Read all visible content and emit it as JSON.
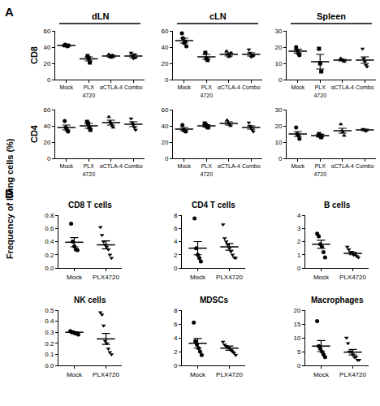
{
  "figure": {
    "panel_labels": [
      "A",
      "B"
    ],
    "y_label": "Frequency of living cells (%)"
  },
  "chart_data": [
    {
      "type": "scatter",
      "title": "dLN",
      "y_label": "CD8",
      "color": "#000000",
      "categories": [
        "Mock",
        "PLX\n4720",
        "αCTLA-4",
        "Combo"
      ],
      "groups": [
        {
          "marker": "circle",
          "values": [
            42,
            43,
            42,
            41,
            42
          ],
          "mean": 42,
          "error": 0.5
        },
        {
          "marker": "square",
          "values": [
            29,
            26,
            21
          ],
          "mean": 25.5,
          "error": 2.5
        },
        {
          "marker": "triangle-up",
          "values": [
            31,
            29,
            27,
            30,
            28
          ],
          "mean": 29,
          "error": 1.5
        },
        {
          "marker": "triangle-down",
          "values": [
            33,
            29,
            26,
            31,
            27
          ],
          "mean": 29,
          "error": 2
        }
      ],
      "ylim": [
        0,
        60
      ],
      "yticks": [
        0,
        20,
        40,
        60
      ]
    },
    {
      "type": "scatter",
      "title": "cLN",
      "color": "#000000",
      "categories": [
        "Mock",
        "PLX\n4720",
        "αCTLA-4",
        "Combo"
      ],
      "groups": [
        {
          "marker": "circle",
          "values": [
            57,
            51,
            45,
            47,
            41
          ],
          "mean": 48,
          "error": 3
        },
        {
          "marker": "square",
          "values": [
            33,
            26,
            24
          ],
          "mean": 28,
          "error": 3
        },
        {
          "marker": "triangle-up",
          "values": [
            35,
            31,
            28,
            29,
            33
          ],
          "mean": 31,
          "error": 2
        },
        {
          "marker": "triangle-down",
          "values": [
            37,
            33,
            28,
            30,
            29
          ],
          "mean": 31,
          "error": 2
        }
      ],
      "ylim": [
        0,
        60
      ],
      "yticks": [
        0,
        20,
        40,
        60
      ]
    },
    {
      "type": "scatter",
      "title": "Spleen",
      "color": "#000000",
      "categories": [
        "Mock",
        "PLX\n4720",
        "αCTLA-4",
        "Combo"
      ],
      "groups": [
        {
          "marker": "circle",
          "values": [
            20,
            18,
            16,
            15
          ],
          "mean": 17.5,
          "error": 1.2
        },
        {
          "marker": "square",
          "values": [
            19,
            10,
            5
          ],
          "mean": 11,
          "error": 4.5
        },
        {
          "marker": "triangle-up",
          "values": [
            13,
            12,
            12,
            11
          ],
          "mean": 12,
          "error": 0.5
        },
        {
          "marker": "triangle-down",
          "values": [
            19,
            13,
            11,
            9,
            8
          ],
          "mean": 12,
          "error": 2
        }
      ],
      "ylim": [
        0,
        30
      ],
      "yticks": [
        0,
        10,
        20,
        30
      ]
    },
    {
      "type": "scatter",
      "y_label": "CD4",
      "color": "#000000",
      "categories": [
        "Mock",
        "PLX\n4720",
        "αCTLA-4",
        "Combo"
      ],
      "groups": [
        {
          "marker": "circle",
          "values": [
            46,
            38,
            35,
            33
          ],
          "mean": 38,
          "error": 3
        },
        {
          "marker": "square",
          "values": [
            45,
            43,
            38,
            35
          ],
          "mean": 40,
          "error": 3
        },
        {
          "marker": "triangle-up",
          "values": [
            51,
            45,
            43,
            40,
            38
          ],
          "mean": 44,
          "error": 3
        },
        {
          "marker": "triangle-down",
          "values": [
            49,
            44,
            41,
            38,
            35
          ],
          "mean": 42,
          "error": 3
        }
      ],
      "ylim": [
        0,
        60
      ],
      "yticks": [
        0,
        20,
        40,
        60
      ]
    },
    {
      "type": "scatter",
      "color": "#000000",
      "categories": [
        "Mock",
        "PLX\n4720",
        "αCTLA-4",
        "Combo"
      ],
      "groups": [
        {
          "marker": "circle",
          "values": [
            41,
            35,
            34,
            33
          ],
          "mean": 36,
          "error": 2
        },
        {
          "marker": "square",
          "values": [
            43,
            41,
            39,
            38
          ],
          "mean": 40,
          "error": 1.5
        },
        {
          "marker": "triangle-up",
          "values": [
            47,
            44,
            42,
            40
          ],
          "mean": 43,
          "error": 2
        },
        {
          "marker": "triangle-down",
          "values": [
            44,
            40,
            38,
            35,
            33
          ],
          "mean": 38,
          "error": 2
        }
      ],
      "ylim": [
        0,
        60
      ],
      "yticks": [
        0,
        20,
        40,
        60
      ]
    },
    {
      "type": "scatter",
      "color": "#000000",
      "categories": [
        "Mock",
        "PLX\n4720",
        "αCTLA-4",
        "Combo"
      ],
      "groups": [
        {
          "marker": "circle",
          "values": [
            19,
            15,
            14,
            12
          ],
          "mean": 15,
          "error": 1.5
        },
        {
          "marker": "square",
          "values": [
            15,
            14,
            13
          ],
          "mean": 14,
          "error": 0.8
        },
        {
          "marker": "triangle-up",
          "values": [
            21,
            17,
            16,
            14
          ],
          "mean": 17,
          "error": 1.5
        },
        {
          "marker": "triangle-down",
          "values": [
            18,
            17.5,
            17,
            17
          ],
          "mean": 17.5,
          "error": 0.5
        }
      ],
      "ylim": [
        0,
        30
      ],
      "yticks": [
        0,
        10,
        20,
        30
      ]
    },
    {
      "type": "scatter",
      "title": "CD8 T cells",
      "color": "#000000",
      "categories": [
        "Mock",
        "PLX4720"
      ],
      "groups": [
        {
          "marker": "circle",
          "values": [
            0.67,
            0.4,
            0.33,
            0.28,
            0.27
          ],
          "mean": 0.39,
          "error": 0.07
        },
        {
          "marker": "triangle-down",
          "values": [
            0.62,
            0.5,
            0.4,
            0.35,
            0.32,
            0.28,
            0.2,
            0.15
          ],
          "mean": 0.35,
          "error": 0.06
        }
      ],
      "ylim": [
        0,
        0.8
      ],
      "yticks": [
        {
          "value": 0,
          "label": "0.0"
        },
        0.2,
        0.4,
        0.6,
        0.8
      ]
    },
    {
      "type": "scatter",
      "title": "CD4 T cells",
      "color": "#000000",
      "categories": [
        "Mock",
        "PLX4720"
      ],
      "groups": [
        {
          "marker": "circle",
          "values": [
            7.5,
            3,
            2,
            1.5,
            1
          ],
          "mean": 3,
          "error": 1
        },
        {
          "marker": "triangle-down",
          "values": [
            6.6,
            4.5,
            4,
            3.5,
            3,
            2.5,
            2,
            1.6,
            1.5
          ],
          "mean": 3.2,
          "error": 0.5
        }
      ],
      "ylim": [
        0,
        8
      ],
      "yticks": [
        0,
        2,
        4,
        6,
        8
      ]
    },
    {
      "type": "scatter",
      "title": "B cells",
      "color": "#000000",
      "categories": [
        "Mock",
        "PLX4720"
      ],
      "groups": [
        {
          "marker": "circle",
          "values": [
            2.6,
            2.4,
            1.8,
            1.6,
            1.2,
            0.8
          ],
          "mean": 1.8,
          "error": 0.3
        },
        {
          "marker": "triangle-down",
          "values": [
            1.6,
            1.4,
            1.2,
            1.2,
            1,
            1,
            0.9,
            0.8
          ],
          "mean": 1.1,
          "error": 0.1
        }
      ],
      "ylim": [
        0,
        4
      ],
      "yticks": [
        0,
        1,
        2,
        3,
        4
      ]
    },
    {
      "type": "scatter",
      "title": "NK cells",
      "color": "#000000",
      "categories": [
        "Mock",
        "PLX4720"
      ],
      "groups": [
        {
          "marker": "circle",
          "values": [
            0.31,
            0.3,
            0.3,
            0.29,
            0.29,
            0.28
          ],
          "mean": 0.3,
          "error": 0.005
        },
        {
          "marker": "triangle-down",
          "values": [
            0.48,
            0.46,
            0.36,
            0.22,
            0.2,
            0.15,
            0.12,
            0.1
          ],
          "mean": 0.24,
          "error": 0.05
        }
      ],
      "ylim": [
        0,
        0.5
      ],
      "yticks": [
        {
          "value": 0,
          "label": "0.0"
        },
        0.1,
        0.2,
        0.3,
        0.4,
        0.5
      ]
    },
    {
      "type": "scatter",
      "title": "MDSCs",
      "color": "#000000",
      "categories": [
        "Mock",
        "PLX4720"
      ],
      "groups": [
        {
          "marker": "circle",
          "values": [
            6.2,
            3.5,
            3,
            2.5,
            2,
            1.5
          ],
          "mean": 3.2,
          "error": 0.7
        },
        {
          "marker": "triangle-down",
          "values": [
            3.4,
            3,
            2.8,
            2.6,
            2.5,
            2.2,
            2,
            1.8,
            1.5
          ],
          "mean": 2.5,
          "error": 0.3
        }
      ],
      "ylim": [
        0,
        8
      ],
      "yticks": [
        0,
        2,
        4,
        6,
        8
      ]
    },
    {
      "type": "scatter",
      "title": "Macrophages",
      "color": "#000000",
      "categories": [
        "Mock",
        "PLX4720"
      ],
      "groups": [
        {
          "marker": "circle",
          "values": [
            16,
            7,
            6,
            5,
            4,
            3
          ],
          "mean": 7,
          "error": 2
        },
        {
          "marker": "triangle-down",
          "values": [
            10,
            8,
            5,
            5,
            4,
            3,
            3,
            2,
            2
          ],
          "mean": 4.8,
          "error": 1
        }
      ],
      "ylim": [
        0,
        20
      ],
      "yticks": [
        0,
        5,
        10,
        15,
        20
      ]
    }
  ]
}
